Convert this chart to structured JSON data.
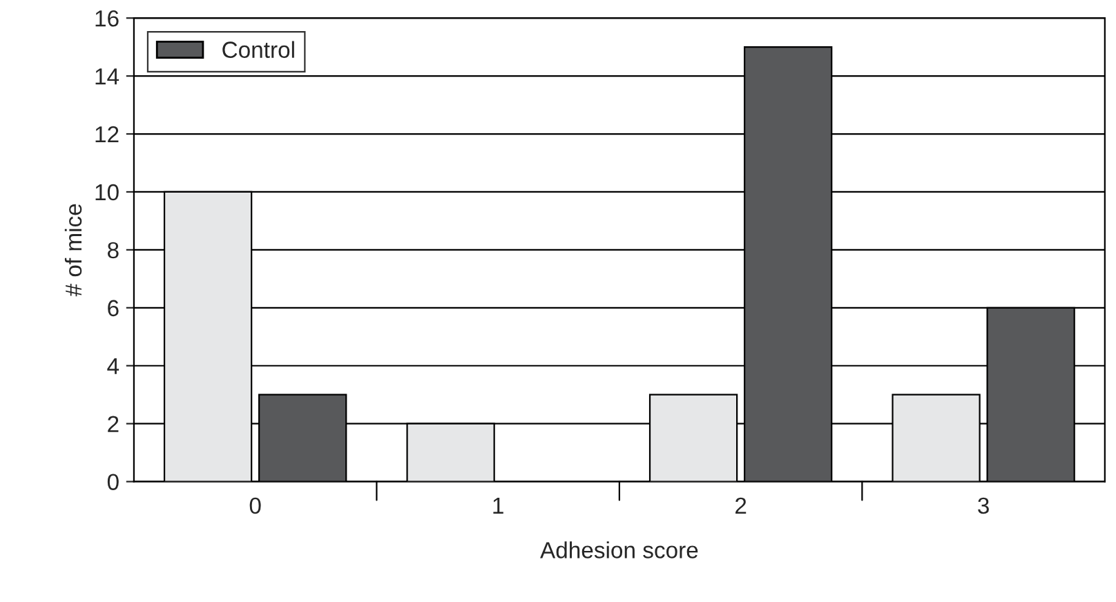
{
  "chart_data": {
    "type": "bar",
    "xlabel": "Adhesion score",
    "ylabel": "# of mice",
    "categories": [
      "0",
      "1",
      "2",
      "3"
    ],
    "series": [
      {
        "color": "#e6e7e8",
        "values": [
          10,
          2,
          3,
          3
        ]
      },
      {
        "name": "Control",
        "color": "#58595b",
        "values": [
          3,
          0,
          15,
          6
        ]
      }
    ],
    "ylim": [
      0,
      16
    ],
    "yticks": [
      0,
      2,
      4,
      6,
      8,
      10,
      12,
      14,
      16
    ],
    "grid": "y",
    "legend": "top left"
  }
}
